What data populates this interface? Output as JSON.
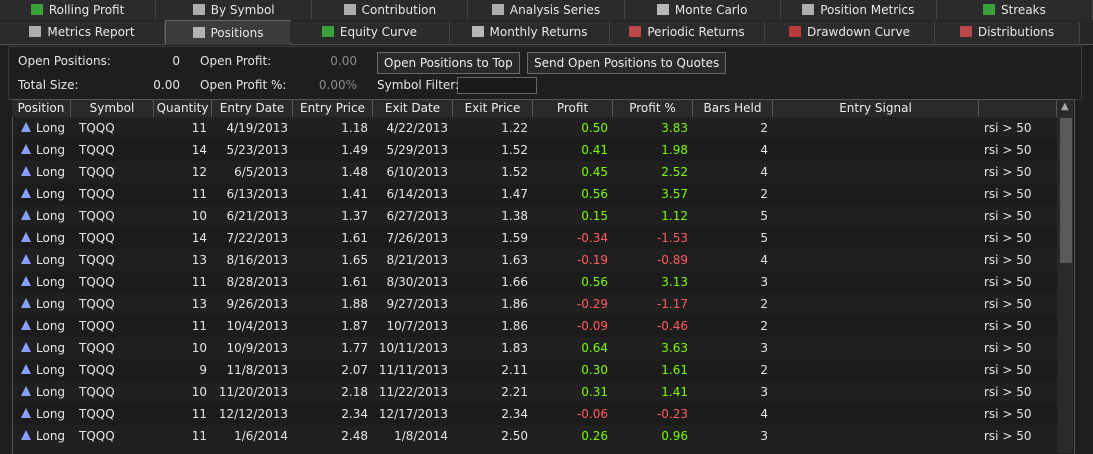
{
  "tabs_row1": [
    "Rolling Profit",
    "By Symbol",
    "Contribution",
    "Analysis Series",
    "Monte Carlo",
    "Position Metrics",
    "Streaks"
  ],
  "tabs_row2": [
    "Metrics Report",
    "Positions",
    "Equity Curve",
    "Monthly Returns",
    "Periodic Returns",
    "Drawdown Curve",
    "Distributions"
  ],
  "summary": {
    "open_positions_label": "Open Positions:",
    "open_positions": "0",
    "open_profit_label": "Open Profit:",
    "open_profit": "0.00",
    "total_size_label": "Total Size:",
    "total_size": "0.00",
    "open_profit_pct_label": "Open Profit %:",
    "open_profit_pct": "0.00%"
  },
  "buttons": [
    "Open Positions to Top",
    "Send Open Positions to Quotes"
  ],
  "symbol_filter_label": "Symbol Filter:",
  "table": {
    "headers": [
      "Position",
      "Symbol",
      "Quantity",
      "Entry Date",
      "Entry Price",
      "Exit Date",
      "Exit Price",
      "Profit",
      "Profit %",
      "Bars Held",
      "Entry Signal"
    ],
    "rows": [
      [
        "Long",
        "TQQQ",
        "11",
        "4/19/2013",
        "1.18",
        "4/22/2013",
        "1.22",
        "0.50",
        "3.83",
        "2",
        "rsi > 50"
      ],
      [
        "Long",
        "TQQQ",
        "14",
        "5/23/2013",
        "1.49",
        "5/29/2013",
        "1.52",
        "0.41",
        "1.98",
        "4",
        "rsi > 50"
      ],
      [
        "Long",
        "TQQQ",
        "12",
        "6/5/2013",
        "1.48",
        "6/10/2013",
        "1.52",
        "0.45",
        "2.52",
        "4",
        "rsi > 50"
      ],
      [
        "Long",
        "TQQQ",
        "11",
        "6/13/2013",
        "1.41",
        "6/14/2013",
        "1.47",
        "0.56",
        "3.57",
        "2",
        "rsi > 50"
      ],
      [
        "Long",
        "TQQQ",
        "10",
        "6/21/2013",
        "1.37",
        "6/27/2013",
        "1.38",
        "0.15",
        "1.12",
        "5",
        "rsi > 50"
      ],
      [
        "Long",
        "TQQQ",
        "14",
        "7/22/2013",
        "1.61",
        "7/26/2013",
        "1.59",
        "-0.34",
        "-1.53",
        "5",
        "rsi > 50"
      ],
      [
        "Long",
        "TQQQ",
        "13",
        "8/16/2013",
        "1.65",
        "8/21/2013",
        "1.63",
        "-0.19",
        "-0.89",
        "4",
        "rsi > 50"
      ],
      [
        "Long",
        "TQQQ",
        "11",
        "8/28/2013",
        "1.61",
        "8/30/2013",
        "1.66",
        "0.56",
        "3.13",
        "3",
        "rsi > 50"
      ],
      [
        "Long",
        "TQQQ",
        "13",
        "9/26/2013",
        "1.88",
        "9/27/2013",
        "1.86",
        "-0.29",
        "-1.17",
        "2",
        "rsi > 50"
      ],
      [
        "Long",
        "TQQQ",
        "11",
        "10/4/2013",
        "1.87",
        "10/7/2013",
        "1.86",
        "-0.09",
        "-0.46",
        "2",
        "rsi > 50"
      ],
      [
        "Long",
        "TQQQ",
        "10",
        "10/9/2013",
        "1.77",
        "10/11/2013",
        "1.83",
        "0.64",
        "3.63",
        "3",
        "rsi > 50"
      ],
      [
        "Long",
        "TQQQ",
        "9",
        "11/8/2013",
        "2.07",
        "11/11/2013",
        "2.11",
        "0.30",
        "1.61",
        "2",
        "rsi > 50"
      ],
      [
        "Long",
        "TQQQ",
        "10",
        "11/20/2013",
        "2.18",
        "11/22/2013",
        "2.21",
        "0.31",
        "1.41",
        "3",
        "rsi > 50"
      ],
      [
        "Long",
        "TQQQ",
        "11",
        "12/12/2013",
        "2.34",
        "12/17/2013",
        "2.34",
        "-0.06",
        "-0.23",
        "4",
        "rsi > 50"
      ],
      [
        "Long",
        "TQQQ",
        "11",
        "1/6/2014",
        "2.48",
        "1/8/2014",
        "2.50",
        "0.26",
        "0.96",
        "3",
        "rsi > 50"
      ]
    ]
  }
}
